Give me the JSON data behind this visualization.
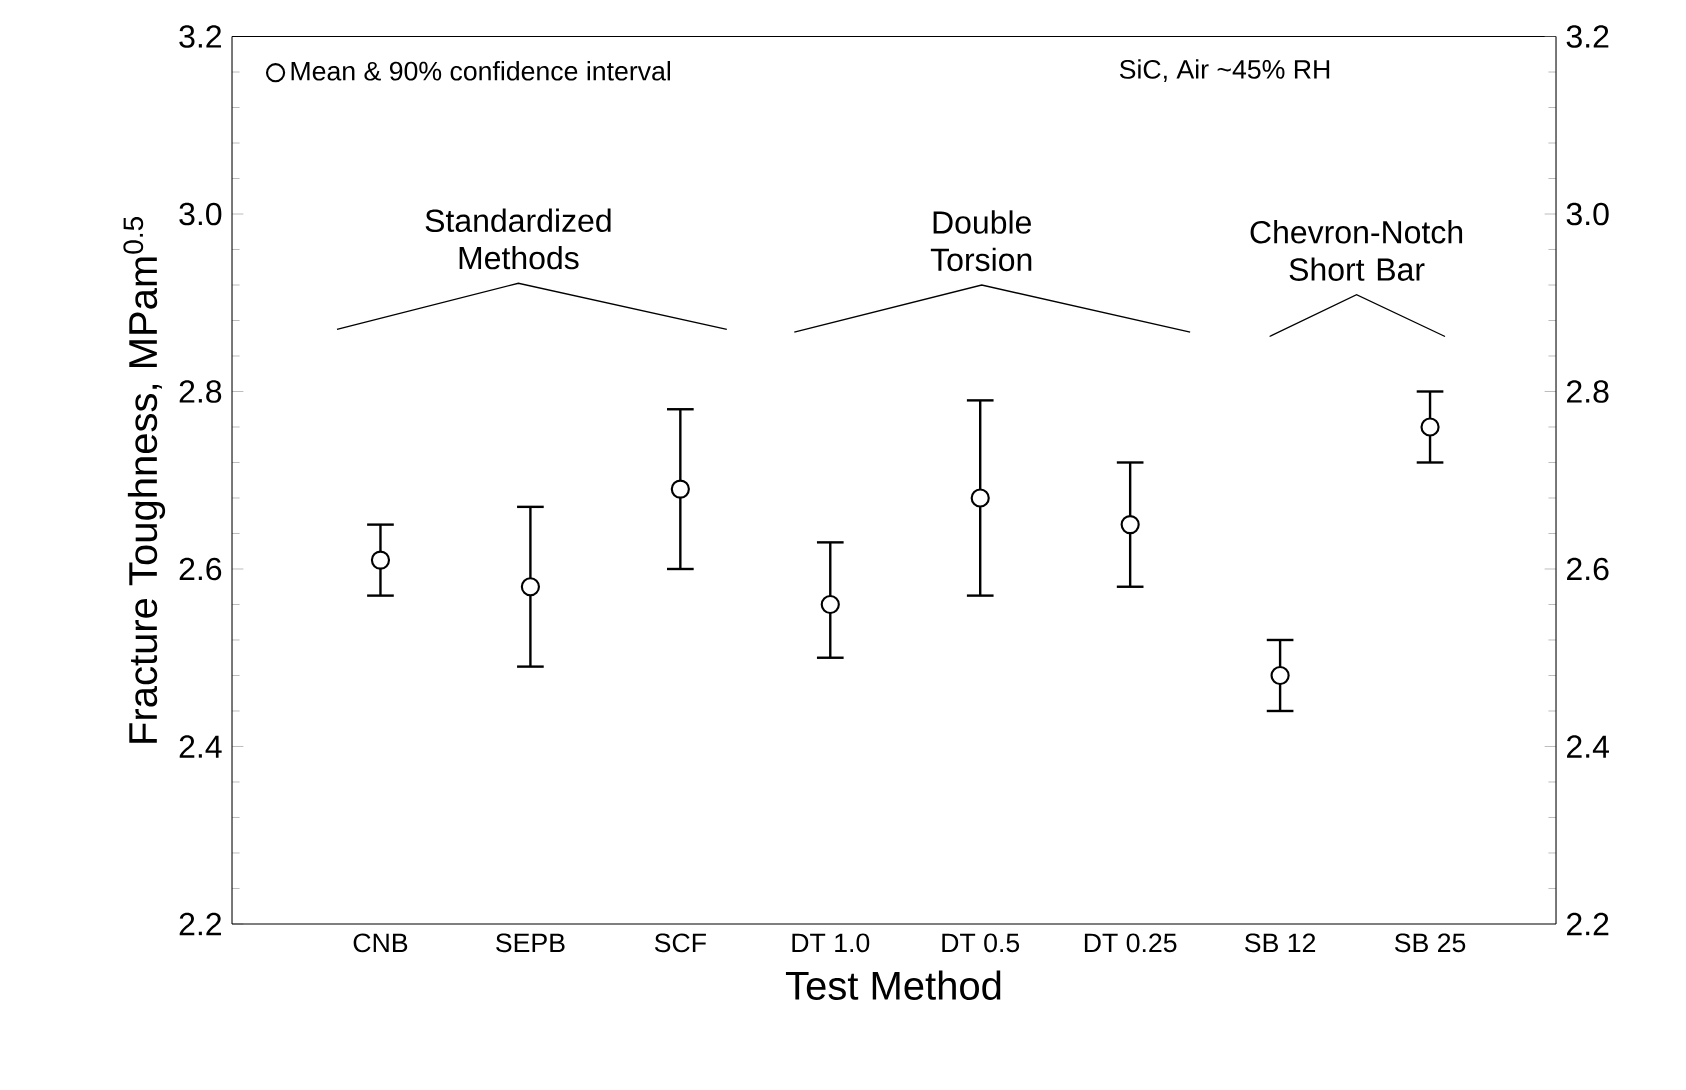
{
  "chart_data": {
    "type": "scatter",
    "ylabel": "Fracture Toughness, MPam$^{0.5}$",
    "xlabel": "Test Method",
    "categories": [
      "CNB",
      "SEPB",
      "SCF",
      "DT 1.0",
      "DT 0.5",
      "DT 0.25",
      "SB 12",
      "SB 25"
    ],
    "series": [
      {
        "name": "Mean & 90% confidence interval",
        "color": "#000000",
        "values": [
          2.61,
          2.58,
          2.69,
          2.56,
          2.68,
          2.65,
          2.48,
          2.76
        ],
        "errors": [
          [
            2.57,
            2.65
          ],
          [
            2.49,
            2.67
          ],
          [
            2.6,
            2.78
          ],
          [
            2.5,
            2.63
          ],
          [
            2.57,
            2.79
          ],
          [
            2.58,
            2.72
          ],
          [
            2.44,
            2.52
          ],
          [
            2.72,
            2.8
          ]
        ]
      }
    ],
    "ylim": [
      2.2,
      3.2
    ],
    "yticks": [
      2.2,
      2.4,
      2.6,
      2.8,
      {
        "value": 3.0,
        "label": "3.0"
      },
      3.2
    ],
    "y2lim": [
      2.2,
      3.2
    ],
    "y2ticks": [
      2.2,
      2.4,
      2.6,
      2.8,
      {
        "value": 3.0,
        "label": "3.0"
      },
      3.2
    ],
    "marker": "circle",
    "legend": "top left",
    "grid": false,
    "annotations": [
      "SiC, Air ~45% RH",
      "Standardized Methods",
      "Double Torsion",
      "Chevron-Notch Short Bar"
    ]
  }
}
